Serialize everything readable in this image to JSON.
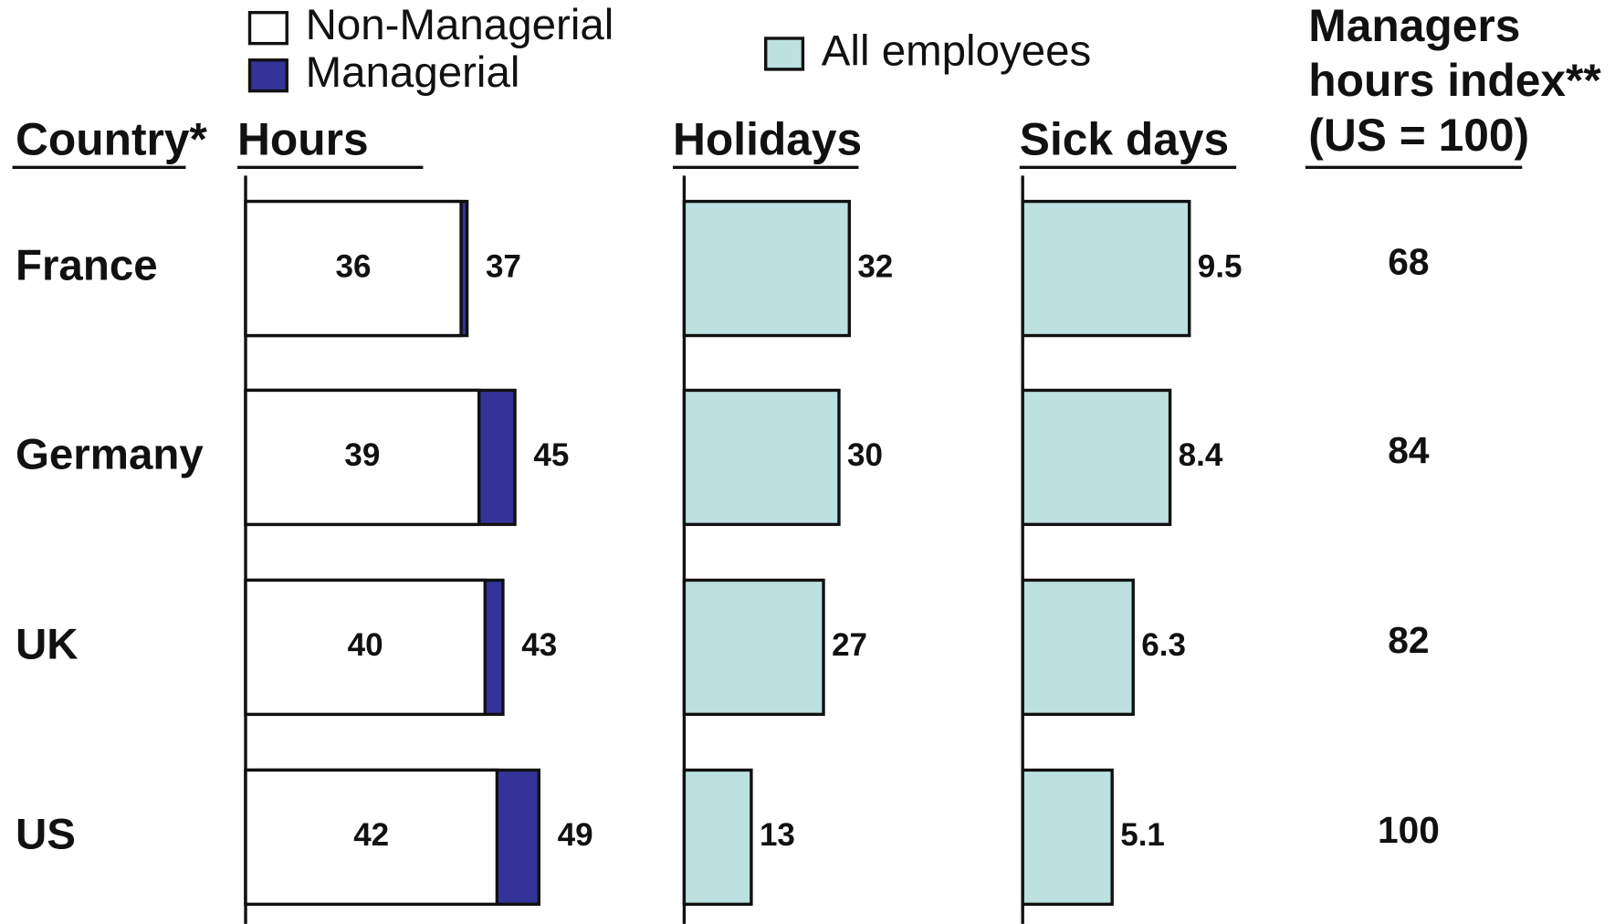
{
  "country_header": "Country*",
  "index": {
    "title_lines": [
      "Managers",
      "hours index**",
      "(US = 100)"
    ],
    "values": [
      68,
      84,
      82,
      100
    ]
  },
  "chart_data": [
    {
      "type": "bar",
      "title": "Hours",
      "categories": [
        "France",
        "Germany",
        "UK",
        "US"
      ],
      "xlim": [
        0,
        50
      ],
      "series": [
        {
          "name": "Non-Managerial",
          "color": "#ffffff",
          "values": [
            36,
            39,
            40,
            42
          ]
        },
        {
          "name": "Managerial",
          "color": "#333399",
          "values": [
            37,
            45,
            43,
            49
          ]
        }
      ]
    },
    {
      "type": "bar",
      "title": "Holidays",
      "xlim": [
        0,
        40
      ],
      "series": [
        {
          "name": "All employees",
          "color": "#bde0e0",
          "values": [
            32,
            30,
            27,
            13
          ]
        }
      ]
    },
    {
      "type": "bar",
      "title": "Sick days",
      "xlim": [
        0,
        12
      ],
      "series": [
        {
          "color": "#bde0e0",
          "values": [
            9.5,
            8.4,
            6.3,
            5.1
          ]
        }
      ]
    }
  ]
}
